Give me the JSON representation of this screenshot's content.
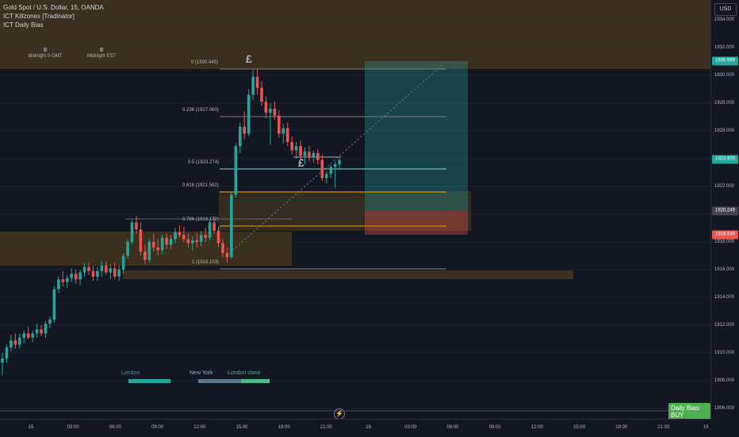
{
  "legend": {
    "symbol": "Gold Spot / U.S. Dollar, 15, OANDA",
    "indicator_1": "ICT Killzones [Tradinator]",
    "indicator_2": "ICT Daily Bias"
  },
  "price_axis": {
    "currency": "USD",
    "ticks": [
      "1934.000",
      "1932.000",
      "1930.000",
      "1928.000",
      "1926.000",
      "1924.000",
      "1922.000",
      "1920.000",
      "1918.000",
      "1916.000",
      "1914.000",
      "1912.000",
      "1910.000",
      "1908.000",
      "1906.000"
    ],
    "tags": [
      {
        "text": "1930.999",
        "color": "#26a69a"
      },
      {
        "text": "1923.920",
        "color": "#26a69a"
      },
      {
        "text": "1920.249",
        "color": "#434651"
      },
      {
        "text": "1918.530",
        "color": "#ef5350"
      }
    ]
  },
  "time_axis": {
    "labels": [
      "15",
      "03:00",
      "06:00",
      "09:00",
      "12:00",
      "15:00",
      "18:00",
      "21:00",
      "18",
      "03:00",
      "06:00",
      "09:00",
      "12:00",
      "15:00",
      "18:00",
      "21:00",
      "19"
    ]
  },
  "markers": {
    "midnight_gmt": "Midnight 0-GMT",
    "midnight_est": "Midnight EST"
  },
  "sessions": {
    "london": "London",
    "new_york": "New York",
    "london_close": "London close"
  },
  "fib_levels": [
    {
      "text": "0 (1930.445)",
      "color": "#787b86"
    },
    {
      "text": "0.236 (1927.060)",
      "color": "#787b86"
    },
    {
      "text": "0.5 (1923.274)",
      "color": "#80deea"
    },
    {
      "text": "0.618 (1921.582)",
      "color": "#ff9800"
    },
    {
      "text": "0.786 (1919.172)",
      "color": "#ff9800"
    },
    {
      "text": "1 (1916.103)",
      "color": "#787b86"
    }
  ],
  "pound_symbol": "£",
  "daily_bias": "Daily Bias: BUY",
  "colors": {
    "bull": "#26a69a",
    "bear": "#ef5350",
    "zone": "#4a3a1f",
    "bg": "#131722"
  },
  "chart_data": {
    "type": "candlestick",
    "ylim": [
      1905.5,
      1935.5
    ],
    "candles": [
      [
        1909.3,
        1910.0,
        1908.4,
        1909.6
      ],
      [
        1909.6,
        1910.6,
        1909.3,
        1910.4
      ],
      [
        1910.4,
        1911.3,
        1910.1,
        1910.9
      ],
      [
        1910.9,
        1911.4,
        1910.3,
        1910.6
      ],
      [
        1910.6,
        1911.4,
        1910.3,
        1911.1
      ],
      [
        1911.1,
        1911.6,
        1910.7,
        1911.4
      ],
      [
        1911.4,
        1911.9,
        1911.0,
        1911.1
      ],
      [
        1911.1,
        1911.6,
        1910.8,
        1911.4
      ],
      [
        1911.4,
        1912.1,
        1911.1,
        1911.7
      ],
      [
        1911.7,
        1912.0,
        1911.2,
        1911.4
      ],
      [
        1911.4,
        1912.3,
        1911.1,
        1912.1
      ],
      [
        1912.1,
        1912.6,
        1911.8,
        1912.4
      ],
      [
        1912.4,
        1914.8,
        1912.2,
        1914.6
      ],
      [
        1914.6,
        1915.5,
        1914.3,
        1915.3
      ],
      [
        1915.3,
        1915.9,
        1914.8,
        1915.1
      ],
      [
        1915.1,
        1915.6,
        1914.7,
        1915.4
      ],
      [
        1915.4,
        1916.1,
        1915.1,
        1915.7
      ],
      [
        1915.7,
        1916.0,
        1915.0,
        1915.3
      ],
      [
        1915.3,
        1916.0,
        1914.9,
        1915.8
      ],
      [
        1915.8,
        1916.5,
        1915.5,
        1916.2
      ],
      [
        1916.2,
        1916.5,
        1915.6,
        1915.9
      ],
      [
        1915.9,
        1916.3,
        1915.2,
        1915.5
      ],
      [
        1915.5,
        1916.2,
        1915.2,
        1915.9
      ],
      [
        1915.9,
        1916.6,
        1915.5,
        1916.3
      ],
      [
        1916.3,
        1916.6,
        1915.6,
        1915.8
      ],
      [
        1915.8,
        1916.4,
        1915.3,
        1916.1
      ],
      [
        1916.1,
        1916.5,
        1915.3,
        1915.5
      ],
      [
        1915.5,
        1916.3,
        1915.2,
        1916.0
      ],
      [
        1916.0,
        1917.2,
        1915.7,
        1917.0
      ],
      [
        1917.0,
        1918.2,
        1916.8,
        1918.0
      ],
      [
        1918.0,
        1919.6,
        1917.8,
        1919.4
      ],
      [
        1919.4,
        1919.9,
        1918.6,
        1918.9
      ],
      [
        1918.9,
        1919.4,
        1917.0,
        1917.3
      ],
      [
        1917.3,
        1917.8,
        1916.4,
        1916.7
      ],
      [
        1916.7,
        1918.2,
        1916.5,
        1918.0
      ],
      [
        1918.0,
        1918.6,
        1917.3,
        1917.6
      ],
      [
        1917.6,
        1918.2,
        1917.0,
        1917.4
      ],
      [
        1917.4,
        1918.5,
        1917.1,
        1918.3
      ],
      [
        1918.3,
        1918.6,
        1917.5,
        1917.8
      ],
      [
        1917.8,
        1918.5,
        1917.5,
        1918.2
      ],
      [
        1918.2,
        1919.0,
        1917.9,
        1918.7
      ],
      [
        1918.7,
        1919.2,
        1918.3,
        1918.5
      ],
      [
        1918.5,
        1919.1,
        1918.0,
        1918.2
      ],
      [
        1918.2,
        1918.6,
        1917.6,
        1917.9
      ],
      [
        1917.9,
        1918.4,
        1917.4,
        1918.1
      ],
      [
        1918.1,
        1918.6,
        1917.6,
        1918.0
      ],
      [
        1918.0,
        1918.8,
        1917.7,
        1918.5
      ],
      [
        1918.5,
        1919.0,
        1918.0,
        1918.3
      ],
      [
        1918.3,
        1919.6,
        1918.1,
        1919.4
      ],
      [
        1919.4,
        1919.8,
        1918.6,
        1918.8
      ],
      [
        1918.8,
        1919.1,
        1917.6,
        1917.9
      ],
      [
        1917.9,
        1918.2,
        1916.9,
        1917.2
      ],
      [
        1917.2,
        1917.6,
        1916.5,
        1916.9
      ],
      [
        1916.9,
        1921.6,
        1916.8,
        1921.4
      ],
      [
        1921.4,
        1925.1,
        1921.2,
        1924.9
      ],
      [
        1924.9,
        1926.6,
        1924.4,
        1926.3
      ],
      [
        1926.3,
        1927.4,
        1925.4,
        1925.8
      ],
      [
        1925.8,
        1929.0,
        1925.6,
        1928.6
      ],
      [
        1928.6,
        1930.4,
        1928.2,
        1929.9
      ],
      [
        1929.9,
        1930.5,
        1928.6,
        1929.1
      ],
      [
        1929.1,
        1929.6,
        1927.8,
        1928.1
      ],
      [
        1928.1,
        1928.5,
        1926.9,
        1927.3
      ],
      [
        1927.3,
        1928.0,
        1925.0,
        1927.6
      ],
      [
        1927.6,
        1928.1,
        1926.8,
        1927.1
      ],
      [
        1927.1,
        1927.5,
        1925.5,
        1925.8
      ],
      [
        1925.8,
        1926.5,
        1925.1,
        1926.2
      ],
      [
        1926.2,
        1926.6,
        1924.9,
        1925.2
      ],
      [
        1925.2,
        1925.6,
        1924.3,
        1924.6
      ],
      [
        1924.6,
        1925.2,
        1924.0,
        1924.9
      ],
      [
        1924.9,
        1925.3,
        1923.9,
        1924.2
      ],
      [
        1924.2,
        1924.8,
        1923.6,
        1924.5
      ],
      [
        1924.5,
        1924.9,
        1923.8,
        1924.1
      ],
      [
        1924.1,
        1924.6,
        1923.7,
        1924.4
      ],
      [
        1924.4,
        1924.7,
        1923.6,
        1923.9
      ],
      [
        1923.9,
        1924.3,
        1922.4,
        1922.6
      ],
      [
        1922.6,
        1923.1,
        1922.2,
        1922.9
      ],
      [
        1922.9,
        1923.6,
        1922.6,
        1923.4
      ],
      [
        1923.4,
        1923.8,
        1921.9,
        1923.6
      ],
      [
        1923.6,
        1924.0,
        1923.2,
        1923.9
      ]
    ]
  }
}
